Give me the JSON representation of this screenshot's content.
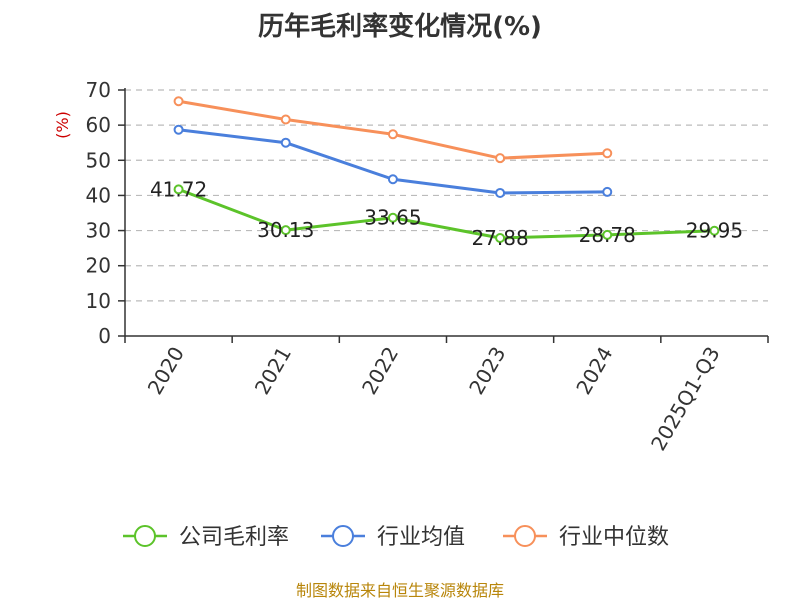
{
  "chart_data": {
    "type": "line",
    "title": "历年毛利率变化情况(%)",
    "ylabel": "(%)",
    "ylim": [
      0,
      70
    ],
    "yticks": [
      0,
      10,
      20,
      30,
      40,
      50,
      60,
      70
    ],
    "grid": true,
    "legend_position": "bottom",
    "categories": [
      "2020",
      "2021",
      "2022",
      "2023",
      "2024",
      "2025Q1-Q3"
    ],
    "series": [
      {
        "name": "公司毛利率",
        "color": "#5cc32a",
        "values": [
          41.72,
          30.13,
          33.65,
          27.88,
          28.78,
          29.95
        ],
        "labels": [
          "41.72",
          "30.13",
          "33.65",
          "27.88",
          "28.78",
          "29.95"
        ]
      },
      {
        "name": "行业均值",
        "color": "#4a7fdc",
        "values": [
          58.7,
          55.0,
          44.6,
          40.7,
          41.0,
          null
        ]
      },
      {
        "name": "行业中位数",
        "color": "#f7905a",
        "values": [
          66.8,
          61.6,
          57.4,
          50.6,
          52.0,
          null
        ]
      }
    ],
    "source": "制图数据来自恒生聚源数据库"
  }
}
